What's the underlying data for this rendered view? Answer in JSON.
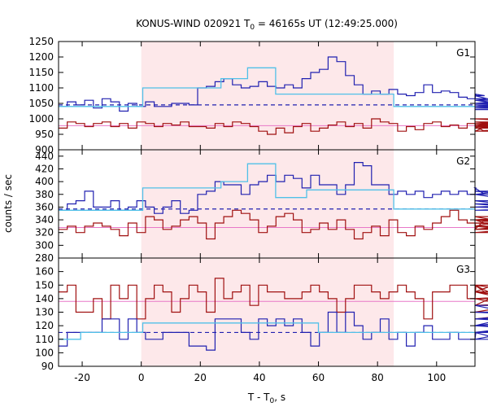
{
  "chart_data": {
    "type": "line",
    "title_prefix": "KONUS-WIND 020921 T",
    "title_sub": "0",
    "title_suffix": " = 46165s UT (12:49:25.000)",
    "xlabel_prefix": "T - T",
    "xlabel_sub": "0",
    "xlabel_suffix": ", s",
    "ylabel": "counts / sec",
    "xlim": [
      -28,
      113
    ],
    "xticks": [
      -20,
      0,
      20,
      40,
      60,
      80,
      100
    ],
    "shaded_interval": [
      0,
      85.5
    ],
    "colors": {
      "blue": "#2020b0",
      "red": "#a01010",
      "cyan": "#50c0e8",
      "pink": "#e878c8",
      "shade": "#fde8ea"
    },
    "panels": [
      {
        "label": "G1",
        "ylim": [
          900,
          1250
        ],
        "yticks": [
          900,
          950,
          1000,
          1050,
          1100,
          1150,
          1200,
          1250
        ],
        "blue_background": 1045,
        "red_background": 978,
        "blue_hist": {
          "x0": -28,
          "bin": 2.944,
          "values": [
            1040,
            1055,
            1045,
            1060,
            1035,
            1065,
            1055,
            1025,
            1050,
            1040,
            1055,
            1040,
            1040,
            1050,
            1050,
            1045,
            1100,
            1105,
            1120,
            1130,
            1110,
            1100,
            1105,
            1120,
            1105,
            1100,
            1110,
            1100,
            1130,
            1150,
            1160,
            1200,
            1185,
            1140,
            1110,
            1080,
            1090,
            1080,
            1095,
            1080,
            1075,
            1085,
            1110,
            1085,
            1090,
            1085,
            1070,
            1065,
            1080,
            1075,
            1060,
            1050,
            1060,
            1040,
            1035,
            1045,
            1040,
            1065,
            1035,
            1040,
            1050,
            1035,
            1045,
            1040,
            1035,
            1035,
            1030,
            1040
          ]
        },
        "red_hist": {
          "x0": -28,
          "bin": 2.944,
          "values": [
            970,
            990,
            985,
            975,
            985,
            990,
            975,
            985,
            970,
            990,
            985,
            975,
            985,
            980,
            990,
            975,
            975,
            970,
            985,
            975,
            990,
            985,
            975,
            960,
            950,
            970,
            955,
            975,
            985,
            960,
            970,
            980,
            990,
            975,
            985,
            970,
            1000,
            990,
            985,
            960,
            975,
            965,
            985,
            990,
            975,
            980,
            970,
            985,
            975,
            960,
            985,
            975,
            970,
            990,
            980,
            975,
            1000,
            985,
            970,
            990,
            960,
            985,
            975,
            990,
            980,
            975,
            960,
            985
          ]
        },
        "cyan_steps": [
          {
            "x0": -28,
            "x1": 0.5,
            "y": 1040
          },
          {
            "x0": 0.5,
            "x1": 27,
            "y": 1100
          },
          {
            "x0": 27,
            "x1": 36,
            "y": 1130
          },
          {
            "x0": 36,
            "x1": 45.5,
            "y": 1165
          },
          {
            "x0": 45.5,
            "x1": 85.5,
            "y": 1080
          },
          {
            "x0": 85.5,
            "x1": 113,
            "y": 1040
          }
        ]
      },
      {
        "label": "G2",
        "ylim": [
          280,
          450
        ],
        "yticks": [
          280,
          300,
          320,
          340,
          360,
          380,
          400,
          420,
          440
        ],
        "blue_background": 357,
        "red_background": 328,
        "blue_hist": {
          "x0": -28,
          "bin": 2.944,
          "values": [
            355,
            365,
            370,
            385,
            360,
            360,
            370,
            355,
            360,
            370,
            360,
            350,
            360,
            370,
            350,
            355,
            380,
            385,
            400,
            395,
            395,
            380,
            395,
            400,
            410,
            400,
            410,
            405,
            390,
            410,
            395,
            395,
            380,
            395,
            430,
            425,
            395,
            395,
            380,
            385,
            380,
            385,
            375,
            380,
            385,
            380,
            385,
            380,
            390,
            380,
            380,
            385,
            380,
            370,
            360,
            360,
            365,
            355,
            360,
            360,
            355,
            360,
            355,
            355,
            360,
            355,
            355,
            360
          ]
        },
        "red_hist": {
          "x0": -28,
          "bin": 2.944,
          "values": [
            325,
            330,
            320,
            330,
            335,
            330,
            325,
            315,
            335,
            320,
            345,
            340,
            325,
            330,
            340,
            345,
            335,
            310,
            335,
            345,
            355,
            350,
            340,
            320,
            330,
            345,
            350,
            340,
            320,
            325,
            335,
            325,
            340,
            325,
            310,
            320,
            330,
            315,
            340,
            320,
            315,
            330,
            325,
            335,
            345,
            355,
            340,
            335,
            325,
            340,
            330,
            330,
            340,
            345,
            330,
            320,
            325,
            330,
            325,
            340,
            320,
            335,
            325,
            340,
            330,
            325,
            335,
            330
          ]
        },
        "cyan_steps": [
          {
            "x0": -28,
            "x1": 0.5,
            "y": 355
          },
          {
            "x0": 0.5,
            "x1": 27,
            "y": 390
          },
          {
            "x0": 27,
            "x1": 36,
            "y": 400
          },
          {
            "x0": 36,
            "x1": 45.5,
            "y": 428
          },
          {
            "x0": 45.5,
            "x1": 56,
            "y": 375
          },
          {
            "x0": 56,
            "x1": 85.5,
            "y": 387
          },
          {
            "x0": 85.5,
            "x1": 113,
            "y": 357
          }
        ]
      },
      {
        "label": "G3",
        "ylim": [
          90,
          170
        ],
        "yticks": [
          90,
          100,
          110,
          120,
          130,
          140,
          150,
          160
        ],
        "blue_background": 115,
        "red_background": 138,
        "blue_hist": {
          "x0": -28,
          "bin": 2.944,
          "values": [
            105,
            115,
            115,
            115,
            115,
            125,
            125,
            110,
            125,
            115,
            110,
            110,
            115,
            115,
            115,
            105,
            105,
            102,
            125,
            125,
            125,
            115,
            110,
            125,
            120,
            125,
            120,
            125,
            115,
            105,
            115,
            130,
            115,
            130,
            120,
            110,
            115,
            125,
            110,
            115,
            105,
            115,
            120,
            110,
            110,
            115,
            110,
            110,
            115,
            115,
            115,
            110,
            115,
            115,
            115,
            115,
            115,
            120,
            135,
            120,
            115,
            125,
            120,
            130,
            125,
            125,
            135,
            110
          ]
        },
        "red_hist": {
          "x0": -28,
          "bin": 2.944,
          "values": [
            145,
            150,
            130,
            130,
            140,
            125,
            150,
            140,
            150,
            125,
            140,
            150,
            145,
            130,
            140,
            150,
            145,
            130,
            155,
            140,
            145,
            150,
            135,
            150,
            145,
            145,
            140,
            140,
            145,
            150,
            145,
            140,
            130,
            140,
            150,
            150,
            145,
            140,
            145,
            150,
            145,
            140,
            125,
            145,
            145,
            150,
            150,
            140,
            150,
            145,
            150,
            140,
            135,
            150,
            145,
            140,
            130,
            140,
            140,
            140,
            140,
            145,
            125,
            135,
            140,
            140,
            140,
            140
          ]
        },
        "cyan_steps": [
          {
            "x0": -28,
            "x1": -20.5,
            "y": 110
          },
          {
            "x0": -20.5,
            "x1": 0.5,
            "y": 115
          },
          {
            "x0": 0.5,
            "x1": 60,
            "y": 122
          },
          {
            "x0": 60,
            "x1": 113,
            "y": 115
          }
        ]
      }
    ]
  }
}
